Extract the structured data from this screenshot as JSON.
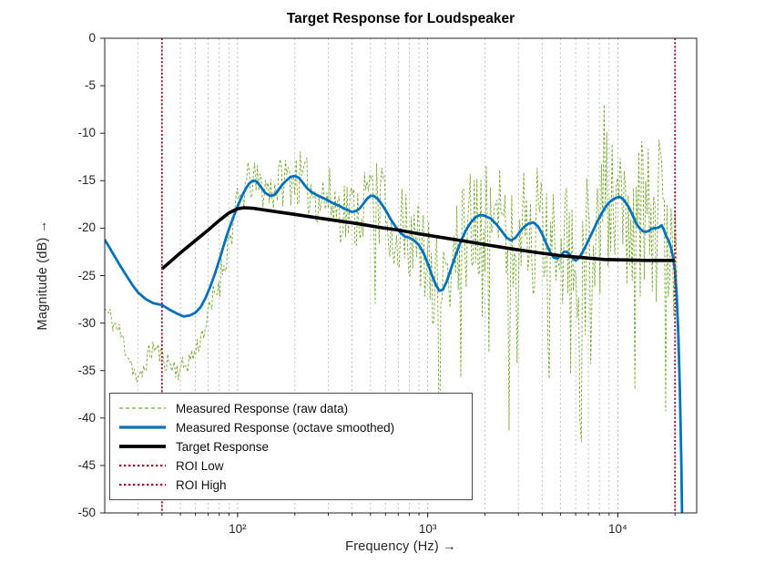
{
  "chart": {
    "title": "Target Response for Loudspeaker",
    "xlabel": "Frequency  (Hz)  →",
    "ylabel": "Magnitude  (dB)  →",
    "x_ticks": [
      {
        "label": "10²",
        "value": 100
      },
      {
        "label": "10³",
        "value": 1000
      },
      {
        "label": "10⁴",
        "value": 10000
      }
    ],
    "y_ticks": [
      {
        "label": "0",
        "value": 0
      },
      {
        "label": "-5",
        "value": -5
      },
      {
        "label": "-10",
        "value": -10
      },
      {
        "label": "-15",
        "value": -15
      },
      {
        "label": "-20",
        "value": -20
      },
      {
        "label": "-25",
        "value": -25
      },
      {
        "label": "-30",
        "value": -30
      },
      {
        "label": "-35",
        "value": -35
      },
      {
        "label": "-40",
        "value": -40
      },
      {
        "label": "-45",
        "value": -45
      },
      {
        "label": "-50",
        "value": -50
      }
    ],
    "colors": {
      "grid": "#b5b5b5",
      "axis": "#262626",
      "text": "#262626"
    }
  },
  "chart_data": {
    "type": "line",
    "x_scale": "log",
    "xlim": [
      20,
      26000
    ],
    "ylim": [
      -50,
      0
    ],
    "grid": {
      "x": true,
      "y": false,
      "x_values": [
        30,
        40,
        50,
        60,
        70,
        80,
        90,
        100,
        200,
        300,
        400,
        500,
        600,
        700,
        800,
        900,
        1000,
        2000,
        3000,
        4000,
        5000,
        6000,
        7000,
        8000,
        9000,
        10000,
        20000
      ]
    },
    "legend_position": "southwest",
    "series": [
      {
        "name": "Measured Response (raw data)",
        "kind": "raw",
        "color": "#77AC30",
        "style": "dashed",
        "width": 0.9,
        "base_points": [
          [
            20,
            -28.5
          ],
          [
            24,
            -31
          ],
          [
            28,
            -34.5
          ],
          [
            30,
            -36.5
          ],
          [
            33,
            -34
          ],
          [
            36,
            -32.5
          ],
          [
            40,
            -33.5
          ],
          [
            45,
            -34.5
          ],
          [
            50,
            -35
          ],
          [
            55,
            -34
          ],
          [
            60,
            -33
          ],
          [
            70,
            -29.5
          ],
          [
            80,
            -25.5
          ],
          [
            90,
            -21.5
          ],
          [
            100,
            -17.5
          ],
          [
            115,
            -15
          ],
          [
            130,
            -15.5
          ],
          [
            150,
            -16
          ],
          [
            170,
            -15
          ],
          [
            200,
            -14.5
          ],
          [
            240,
            -16
          ],
          [
            300,
            -17
          ],
          [
            360,
            -18
          ],
          [
            420,
            -18.5
          ],
          [
            500,
            -16.5
          ],
          [
            600,
            -18.5
          ],
          [
            700,
            -20.5
          ],
          [
            800,
            -21
          ],
          [
            900,
            -22
          ],
          [
            1000,
            -24
          ],
          [
            1100,
            -26
          ],
          [
            1300,
            -24
          ],
          [
            1500,
            -21
          ],
          [
            1800,
            -19
          ],
          [
            2000,
            -18.5
          ],
          [
            2400,
            -20
          ],
          [
            2800,
            -21.5
          ],
          [
            3400,
            -19.5
          ],
          [
            4000,
            -21
          ],
          [
            4600,
            -23
          ],
          [
            5200,
            -22.5
          ],
          [
            6000,
            -23.5
          ],
          [
            7000,
            -21.5
          ],
          [
            8000,
            -19
          ],
          [
            9000,
            -17.5
          ],
          [
            10000,
            -16.5
          ],
          [
            11000,
            -17
          ],
          [
            12000,
            -18.5
          ],
          [
            13500,
            -20
          ],
          [
            15000,
            -20
          ],
          [
            17000,
            -20
          ],
          [
            18500,
            -20.5
          ],
          [
            20000,
            -23
          ],
          [
            20600,
            -28
          ],
          [
            21000,
            -34
          ]
        ],
        "noise": {
          "seed": 11,
          "n_points": 430,
          "f_start": 20,
          "f_end": 21000,
          "base_amp": 2.0,
          "slope_amp": 3.3,
          "ref_freq": 100,
          "dip_chance": 0.06,
          "dip_min_freq": 500,
          "dip_extra_max": 14,
          "spike_chance": 0.08,
          "spike_min_freq": 8000,
          "spike_extra_max": 4,
          "clip_db": -57
        }
      },
      {
        "name": "Measured Response (octave smoothed)",
        "kind": "line",
        "color": "#0072BD",
        "style": "solid",
        "width": 2.8,
        "points": [
          [
            20,
            -21.2
          ],
          [
            22,
            -22.6
          ],
          [
            24,
            -23.9
          ],
          [
            26,
            -25.0
          ],
          [
            28,
            -26.0
          ],
          [
            30,
            -26.8
          ],
          [
            33,
            -27.5
          ],
          [
            36,
            -27.9
          ],
          [
            40,
            -28.1
          ],
          [
            44,
            -28.6
          ],
          [
            48,
            -29.0
          ],
          [
            52,
            -29.3
          ],
          [
            56,
            -29.2
          ],
          [
            60,
            -28.9
          ],
          [
            64,
            -28.3
          ],
          [
            68,
            -27.3
          ],
          [
            72,
            -26.1
          ],
          [
            76,
            -24.8
          ],
          [
            80,
            -23.4
          ],
          [
            84,
            -22.0
          ],
          [
            88,
            -20.7
          ],
          [
            92,
            -19.6
          ],
          [
            96,
            -18.6
          ],
          [
            100,
            -17.7
          ],
          [
            105,
            -16.7
          ],
          [
            110,
            -15.9
          ],
          [
            115,
            -15.3
          ],
          [
            120,
            -15.0
          ],
          [
            126,
            -15.1
          ],
          [
            132,
            -15.6
          ],
          [
            140,
            -16.3
          ],
          [
            148,
            -16.6
          ],
          [
            156,
            -16.5
          ],
          [
            164,
            -16.0
          ],
          [
            172,
            -15.4
          ],
          [
            180,
            -15.0
          ],
          [
            190,
            -14.6
          ],
          [
            200,
            -14.5
          ],
          [
            210,
            -14.7
          ],
          [
            220,
            -15.2
          ],
          [
            232,
            -15.8
          ],
          [
            245,
            -16.2
          ],
          [
            260,
            -16.5
          ],
          [
            280,
            -16.8
          ],
          [
            300,
            -17.1
          ],
          [
            320,
            -17.4
          ],
          [
            340,
            -17.6
          ],
          [
            360,
            -17.9
          ],
          [
            380,
            -18.1
          ],
          [
            400,
            -18.3
          ],
          [
            420,
            -18.2
          ],
          [
            440,
            -17.9
          ],
          [
            460,
            -17.4
          ],
          [
            480,
            -16.9
          ],
          [
            500,
            -16.6
          ],
          [
            520,
            -16.6
          ],
          [
            545,
            -16.9
          ],
          [
            570,
            -17.4
          ],
          [
            600,
            -18.1
          ],
          [
            640,
            -19.1
          ],
          [
            680,
            -19.9
          ],
          [
            720,
            -20.5
          ],
          [
            760,
            -20.9
          ],
          [
            800,
            -21.0
          ],
          [
            850,
            -21.3
          ],
          [
            900,
            -21.8
          ],
          [
            950,
            -22.6
          ],
          [
            1000,
            -23.7
          ],
          [
            1050,
            -24.9
          ],
          [
            1100,
            -25.9
          ],
          [
            1150,
            -26.6
          ],
          [
            1200,
            -26.5
          ],
          [
            1260,
            -25.6
          ],
          [
            1320,
            -24.4
          ],
          [
            1400,
            -22.9
          ],
          [
            1500,
            -21.3
          ],
          [
            1600,
            -20.1
          ],
          [
            1700,
            -19.3
          ],
          [
            1800,
            -18.8
          ],
          [
            1900,
            -18.6
          ],
          [
            2000,
            -18.7
          ],
          [
            2150,
            -19.0
          ],
          [
            2300,
            -19.6
          ],
          [
            2450,
            -20.3
          ],
          [
            2600,
            -21.0
          ],
          [
            2750,
            -21.3
          ],
          [
            2900,
            -21.0
          ],
          [
            3050,
            -20.4
          ],
          [
            3200,
            -19.9
          ],
          [
            3400,
            -19.5
          ],
          [
            3600,
            -19.4
          ],
          [
            3800,
            -19.8
          ],
          [
            4000,
            -20.6
          ],
          [
            4200,
            -21.6
          ],
          [
            4400,
            -22.5
          ],
          [
            4600,
            -23.1
          ],
          [
            4800,
            -23.2
          ],
          [
            5000,
            -22.9
          ],
          [
            5200,
            -22.5
          ],
          [
            5400,
            -22.5
          ],
          [
            5600,
            -22.8
          ],
          [
            5800,
            -23.2
          ],
          [
            6000,
            -23.4
          ],
          [
            6200,
            -23.2
          ],
          [
            6400,
            -22.8
          ],
          [
            6700,
            -22.1
          ],
          [
            7000,
            -21.3
          ],
          [
            7400,
            -20.3
          ],
          [
            7800,
            -19.3
          ],
          [
            8200,
            -18.5
          ],
          [
            8600,
            -17.8
          ],
          [
            9000,
            -17.3
          ],
          [
            9400,
            -17.0
          ],
          [
            9800,
            -16.8
          ],
          [
            10200,
            -16.7
          ],
          [
            10600,
            -16.9
          ],
          [
            11000,
            -17.3
          ],
          [
            11500,
            -17.9
          ],
          [
            12000,
            -18.7
          ],
          [
            12500,
            -19.5
          ],
          [
            13000,
            -20.0
          ],
          [
            13500,
            -20.3
          ],
          [
            14000,
            -20.4
          ],
          [
            14500,
            -20.3
          ],
          [
            15000,
            -20.1
          ],
          [
            15500,
            -20.0
          ],
          [
            16000,
            -20.0
          ],
          [
            16500,
            -19.9
          ],
          [
            17000,
            -19.7
          ],
          [
            17500,
            -20.2
          ],
          [
            18000,
            -20.9
          ],
          [
            18500,
            -21.3
          ],
          [
            19000,
            -22.0
          ],
          [
            19500,
            -23.0
          ],
          [
            20000,
            -24.5
          ],
          [
            20400,
            -27.0
          ],
          [
            20800,
            -31.0
          ],
          [
            21200,
            -37.0
          ],
          [
            21600,
            -45.0
          ],
          [
            21900,
            -54.0
          ]
        ]
      },
      {
        "name": "Target Response",
        "kind": "line",
        "color": "#000000",
        "style": "solid",
        "width": 3.6,
        "points": [
          [
            40,
            -24.3
          ],
          [
            50,
            -22.6
          ],
          [
            60,
            -21.3
          ],
          [
            70,
            -20.2
          ],
          [
            80,
            -19.2
          ],
          [
            90,
            -18.4
          ],
          [
            100,
            -17.95
          ],
          [
            108,
            -17.85
          ],
          [
            120,
            -17.9
          ],
          [
            140,
            -18.1
          ],
          [
            170,
            -18.35
          ],
          [
            200,
            -18.55
          ],
          [
            260,
            -18.9
          ],
          [
            330,
            -19.2
          ],
          [
            420,
            -19.5
          ],
          [
            550,
            -19.9
          ],
          [
            700,
            -20.2
          ],
          [
            900,
            -20.6
          ],
          [
            1200,
            -21.0
          ],
          [
            1600,
            -21.4
          ],
          [
            2100,
            -21.8
          ],
          [
            2800,
            -22.2
          ],
          [
            3700,
            -22.55
          ],
          [
            5000,
            -22.9
          ],
          [
            6500,
            -23.1
          ],
          [
            8500,
            -23.3
          ],
          [
            11000,
            -23.35
          ],
          [
            14000,
            -23.4
          ],
          [
            17000,
            -23.4
          ],
          [
            20000,
            -23.4
          ]
        ]
      },
      {
        "name": "ROI Low",
        "kind": "vline",
        "x": 40,
        "color": "#A2142F",
        "style": "dotted",
        "width": 1.9
      },
      {
        "name": "ROI High",
        "kind": "vline",
        "x": 20000,
        "color": "#A2142F",
        "style": "dotted",
        "width": 1.9
      }
    ]
  }
}
